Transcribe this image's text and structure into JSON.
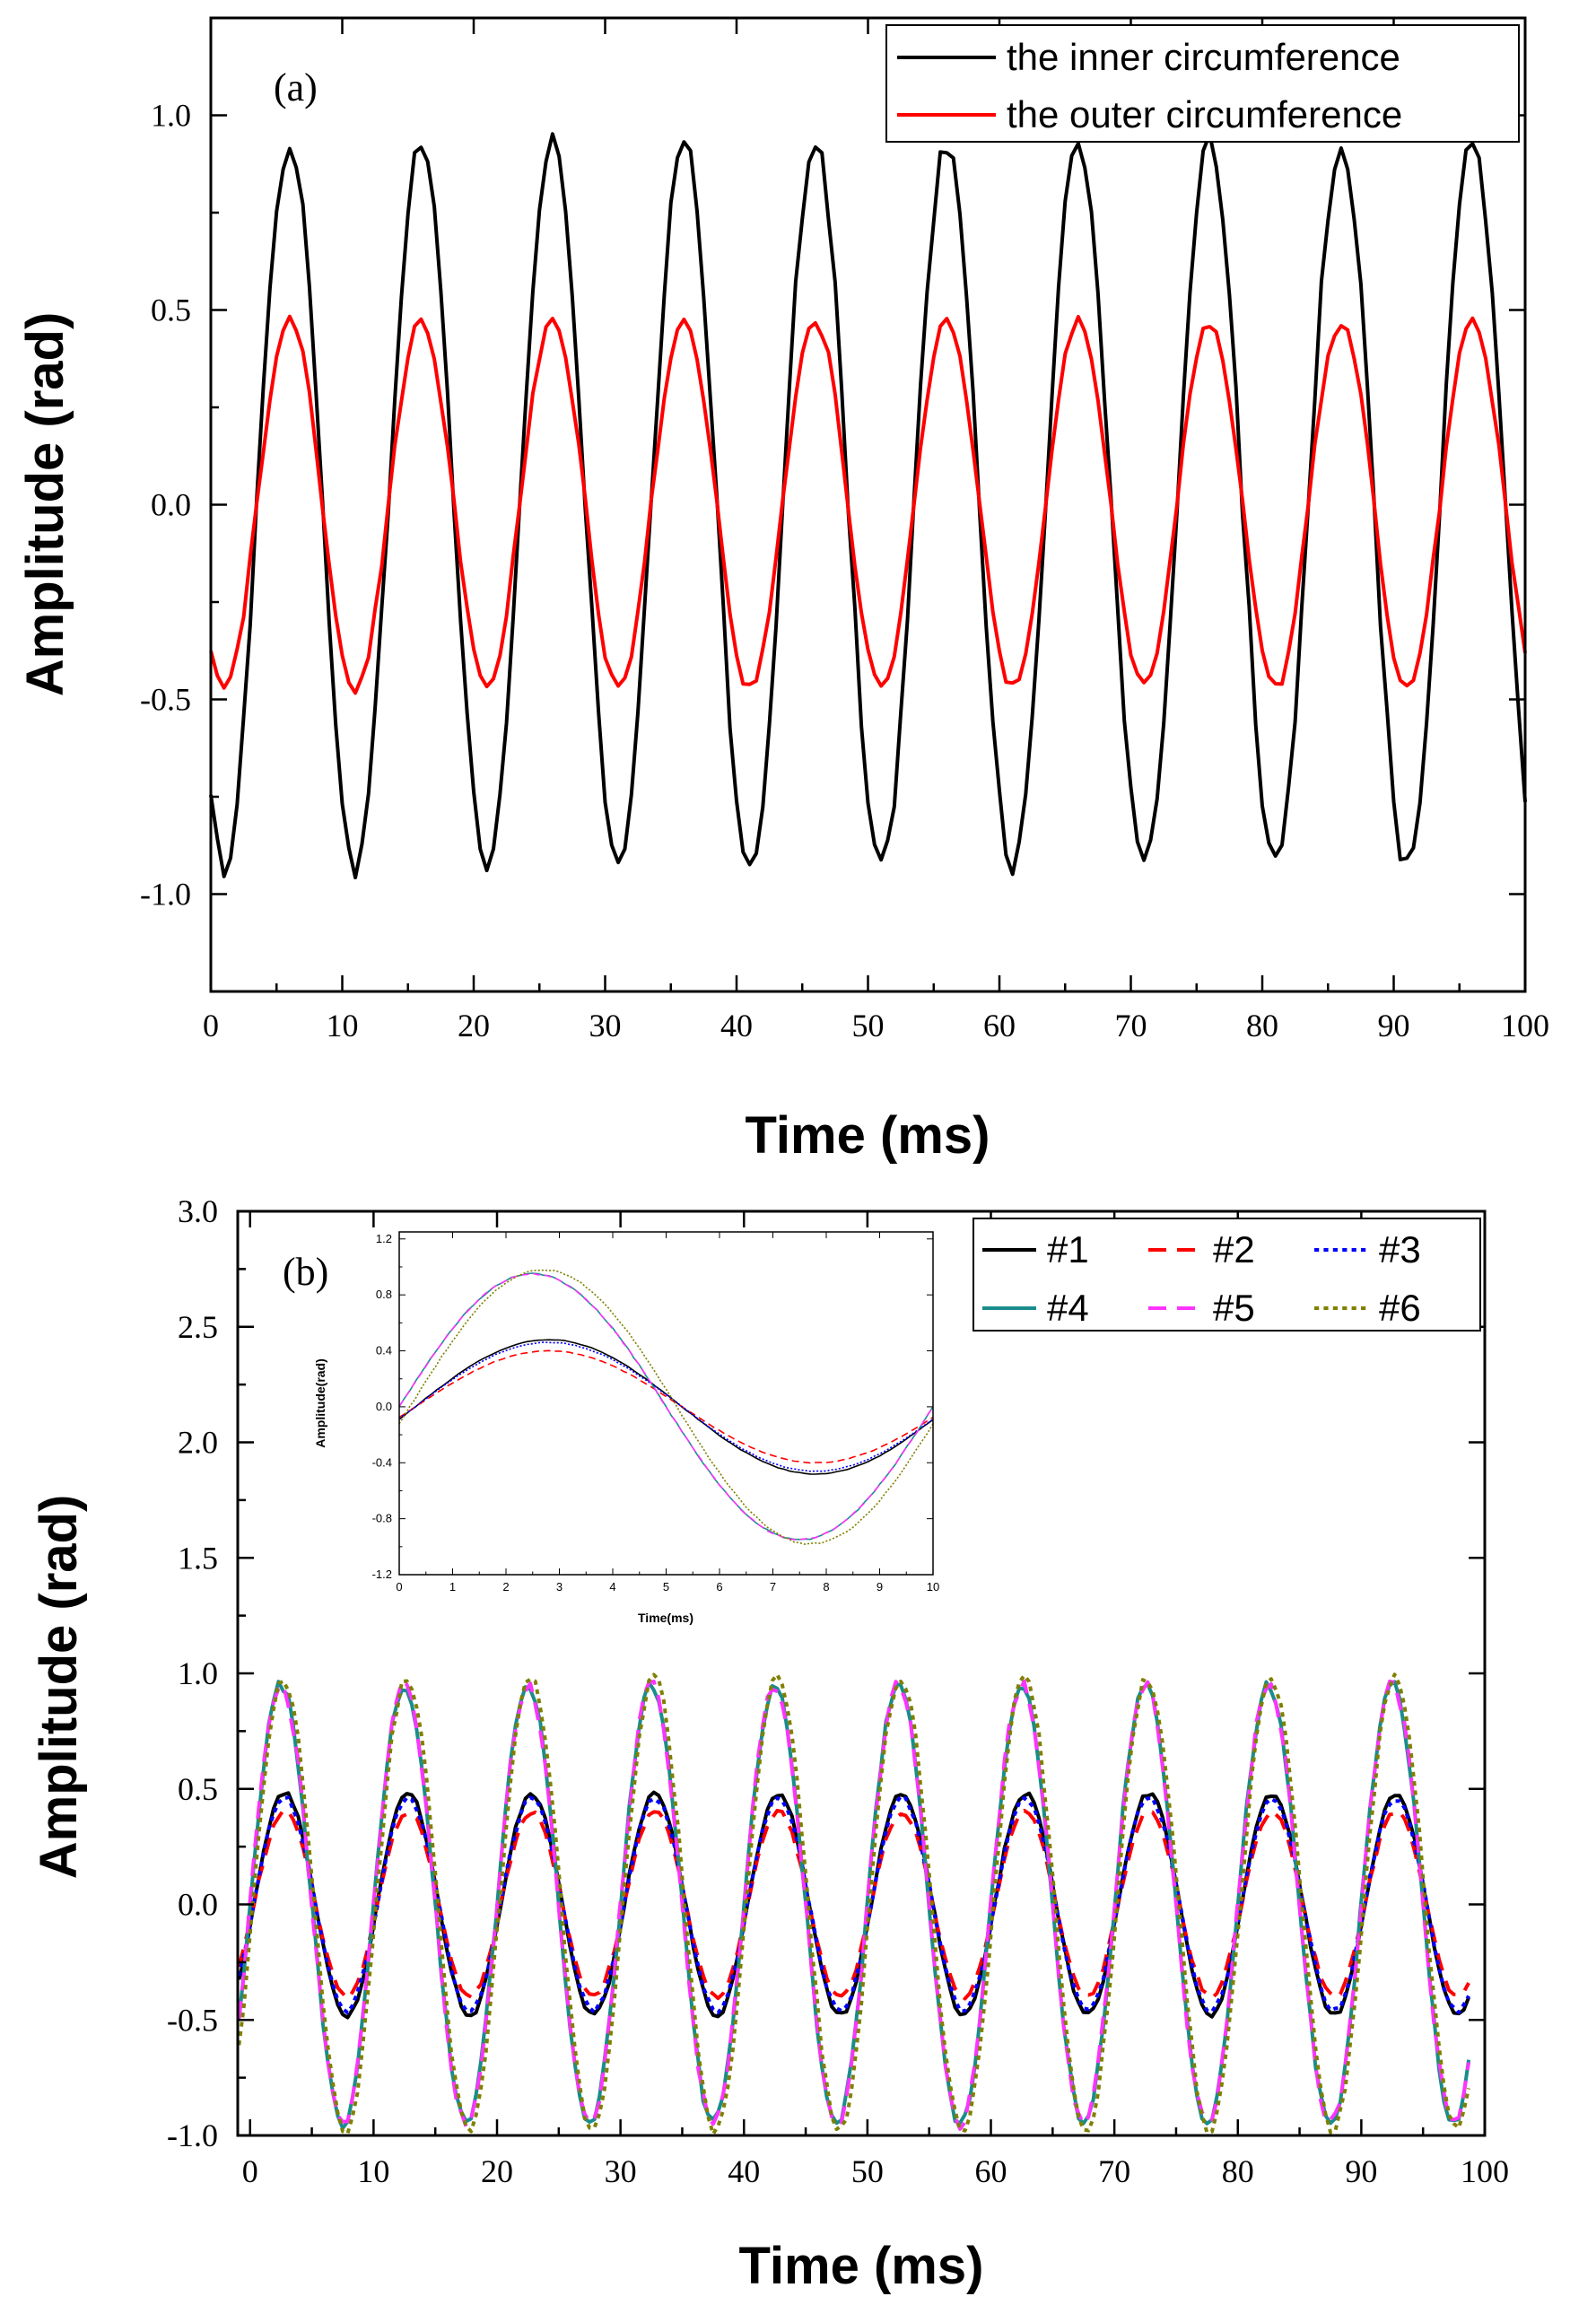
{
  "chart_data": [
    {
      "id": "a",
      "type": "line",
      "panel_label": "(a)",
      "xlabel": "Time (ms)",
      "ylabel": "Amplitude (rad)",
      "xlim": [
        0,
        100
      ],
      "ylim": [
        -1.25,
        1.25
      ],
      "xticks": [
        0,
        10,
        20,
        30,
        40,
        50,
        60,
        70,
        80,
        90,
        100
      ],
      "xtick_labels": [
        "0",
        "10",
        "20",
        "30",
        "40",
        "50",
        "60",
        "70",
        "80",
        "90",
        "100"
      ],
      "yticks": [
        -1.0,
        -0.5,
        0.0,
        0.5,
        1.0
      ],
      "ytick_labels": [
        "-1.0",
        "-0.5",
        "0.0",
        "0.5",
        "1.0"
      ],
      "legend_position": "top-right",
      "series": [
        {
          "name": "the inner circumference",
          "color": "#000000",
          "dash": "solid",
          "amplitude": 0.93,
          "period_ms": 10,
          "peak_ms": 6
        },
        {
          "name": "the outer circumference",
          "color": "#ff0000",
          "dash": "solid",
          "amplitude": 0.47,
          "period_ms": 10,
          "peak_ms": 6
        }
      ]
    },
    {
      "id": "b",
      "type": "line",
      "panel_label": "(b)",
      "xlabel": "Time (ms)",
      "ylabel": "Amplitude (rad)",
      "xlim": [
        -1,
        100
      ],
      "ylim": [
        -1.0,
        3.0
      ],
      "xticks": [
        0,
        10,
        20,
        30,
        40,
        50,
        60,
        70,
        80,
        90,
        100
      ],
      "xtick_labels": [
        "0",
        "10",
        "20",
        "30",
        "40",
        "50",
        "60",
        "70",
        "80",
        "90",
        "100"
      ],
      "yticks": [
        -1.0,
        -0.5,
        0.0,
        0.5,
        1.0,
        1.5,
        2.0,
        2.5,
        3.0
      ],
      "ytick_labels": [
        "-1.0",
        "-0.5",
        "0.0",
        "0.5",
        "1.0",
        "1.5",
        "2.0",
        "2.5",
        "3.0"
      ],
      "legend_position": "top-right",
      "series": [
        {
          "name": "#1",
          "color": "#000000",
          "dash": "solid",
          "amplitude": 0.48,
          "period_ms": 10,
          "peak_ms": 2.8
        },
        {
          "name": "#2",
          "color": "#ff0000",
          "dash": "dashed",
          "amplitude": 0.4,
          "period_ms": 10,
          "peak_ms": 2.8
        },
        {
          "name": "#3",
          "color": "#0000ff",
          "dash": "dotted",
          "amplitude": 0.46,
          "period_ms": 10,
          "peak_ms": 2.8
        },
        {
          "name": "#4",
          "color": "#1a8c8c",
          "dash": "solid",
          "amplitude": 0.95,
          "period_ms": 10,
          "peak_ms": 2.5
        },
        {
          "name": "#5",
          "color": "#ff33ff",
          "dash": "dashed",
          "amplitude": 0.95,
          "period_ms": 10,
          "peak_ms": 2.5
        },
        {
          "name": "#6",
          "color": "#808000",
          "dash": "dotted",
          "amplitude": 0.98,
          "period_ms": 10,
          "peak_ms": 2.7
        }
      ],
      "inset": {
        "xlabel": "Time(ms)",
        "ylabel": "Amplitude(rad)",
        "xlim": [
          0,
          10
        ],
        "ylim": [
          -1.2,
          1.25
        ],
        "xticks": [
          0,
          1,
          2,
          3,
          4,
          5,
          6,
          7,
          8,
          9,
          10
        ],
        "xtick_labels": [
          "0",
          "1",
          "2",
          "3",
          "4",
          "5",
          "6",
          "7",
          "8",
          "9",
          "10"
        ],
        "yticks": [
          -1.2,
          -0.8,
          -0.4,
          0.0,
          0.4,
          0.8,
          1.2
        ],
        "ytick_labels": [
          "-1.2",
          "-0.8",
          "-0.4",
          "0.0",
          "0.4",
          "0.8",
          "1.2"
        ]
      }
    }
  ]
}
